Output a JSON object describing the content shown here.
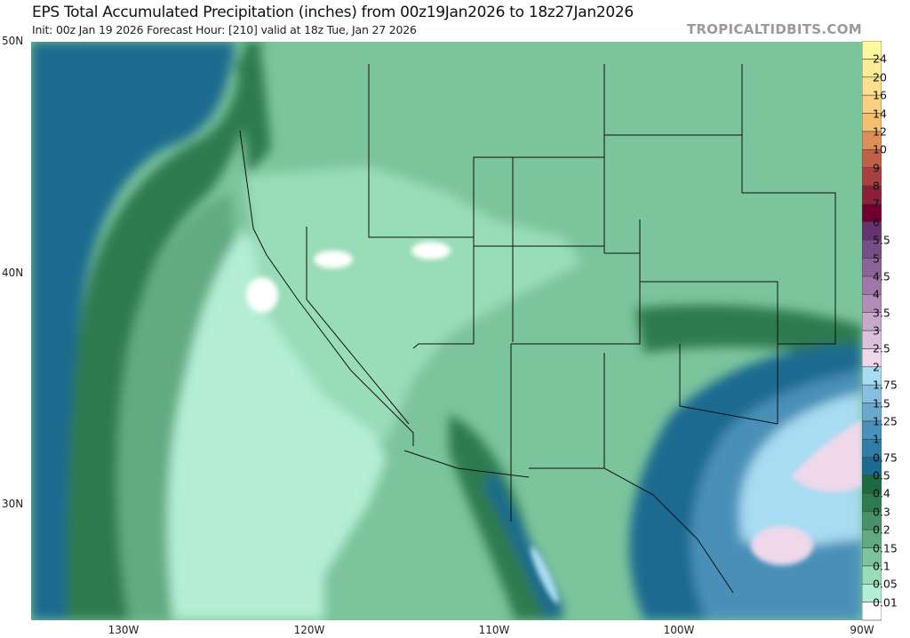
{
  "header": {
    "title": "EPS Total Accumulated Precipitation (inches) from 00z19Jan2026 to 18z27Jan2026",
    "subtitle": "Init: 00z Jan 19 2026   Forecast Hour: [210]   valid at 18z Tue, Jan 27 2026",
    "brand": "TROPICALTIDBITS.COM"
  },
  "axes": {
    "lat_labels": [
      "50N",
      "40N",
      "30N"
    ],
    "lon_labels": [
      "130W",
      "120W",
      "110W",
      "100W",
      "90W"
    ]
  },
  "colorbar": {
    "labels": [
      "0.01",
      "0.05",
      "0.1",
      "0.15",
      "0.2",
      "0.3",
      "0.4",
      "0.5",
      "0.75",
      "1",
      "1.25",
      "1.5",
      "1.75",
      "2",
      "2.5",
      "3",
      "3.5",
      "4",
      "4.5",
      "5",
      "5.5",
      "6",
      "7",
      "8",
      "9",
      "10",
      "12",
      "14",
      "16",
      "20",
      "24"
    ],
    "colors": [
      "#ffffff",
      "#b4eed4",
      "#98dcb8",
      "#7cc49c",
      "#62aa82",
      "#4a9068",
      "#2f7a50",
      "#1d6a42",
      "#1b6a90",
      "#2f7ea6",
      "#4a90b8",
      "#6aa8cc",
      "#86c0de",
      "#a8dcf2",
      "#eed8ea",
      "#dcc0dc",
      "#c8a8cc",
      "#b48cb8",
      "#a078a8",
      "#8c6298",
      "#764e86",
      "#643470",
      "#700030",
      "#8c2038",
      "#a84040",
      "#c06048",
      "#dc9058",
      "#f4c070",
      "#f8d080",
      "#fce090",
      "#fcec98",
      "#fef8a0"
    ]
  },
  "map_colors": {
    "ocean_far": "#1d6a8e",
    "ocean_band": "#2f7a50",
    "ocean_mid": "#62aa82",
    "ocean_near": "#98dcb8",
    "ocean_light": "#b4eed4",
    "land": "#7cc49c",
    "land_light": "#98dcb8",
    "heavy_blue": "#1b6a90",
    "med_blue": "#4a90b8",
    "light_blue": "#a8dcf2",
    "pink": "#eed8ea",
    "border": "#111111"
  }
}
